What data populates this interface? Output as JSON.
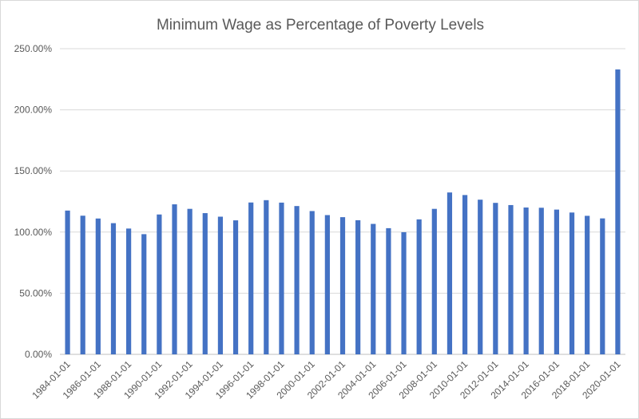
{
  "chart_data": {
    "type": "bar",
    "title": "Minimum Wage as Percentage of Poverty Levels",
    "xlabel": "",
    "ylabel": "",
    "ylim": [
      0,
      250
    ],
    "y_ticks": [
      0,
      50,
      100,
      150,
      200,
      250
    ],
    "y_tick_labels": [
      "0.00%",
      "50.00%",
      "100.00%",
      "150.00%",
      "200.00%",
      "250.00%"
    ],
    "grid": "horizontal",
    "legend": "none",
    "bar_color": "#4472c4",
    "categories": [
      "1984-01-01",
      "1985-01-01",
      "1986-01-01",
      "1987-01-01",
      "1988-01-01",
      "1989-01-01",
      "1990-01-01",
      "1991-01-01",
      "1992-01-01",
      "1993-01-01",
      "1994-01-01",
      "1995-01-01",
      "1996-01-01",
      "1997-01-01",
      "1998-01-01",
      "1999-01-01",
      "2000-01-01",
      "2001-01-01",
      "2002-01-01",
      "2003-01-01",
      "2004-01-01",
      "2005-01-01",
      "2006-01-01",
      "2007-01-01",
      "2008-01-01",
      "2009-01-01",
      "2010-01-01",
      "2011-01-01",
      "2012-01-01",
      "2013-01-01",
      "2014-01-01",
      "2015-01-01",
      "2016-01-01",
      "2017-01-01",
      "2018-01-01",
      "2019-01-01",
      "2020-01-01"
    ],
    "x_tick_labels": [
      "1984-01-01",
      "1986-01-01",
      "1988-01-01",
      "1990-01-01",
      "1992-01-01",
      "1994-01-01",
      "1996-01-01",
      "1998-01-01",
      "2000-01-01",
      "2002-01-01",
      "2004-01-01",
      "2006-01-01",
      "2008-01-01",
      "2010-01-01",
      "2012-01-01",
      "2014-01-01",
      "2016-01-01",
      "2018-01-01",
      "2020-01-01"
    ],
    "values": [
      117.6,
      113.4,
      111.1,
      107.3,
      102.9,
      98.3,
      114.4,
      122.7,
      119.0,
      115.5,
      112.6,
      109.6,
      124.2,
      126.1,
      124.1,
      121.3,
      117.2,
      113.9,
      112.2,
      109.7,
      106.7,
      103.2,
      99.9,
      110.4,
      119.0,
      132.4,
      130.3,
      126.5,
      123.9,
      122.1,
      120.1,
      119.9,
      118.4,
      116.0,
      113.3,
      111.2,
      233.0
    ]
  }
}
